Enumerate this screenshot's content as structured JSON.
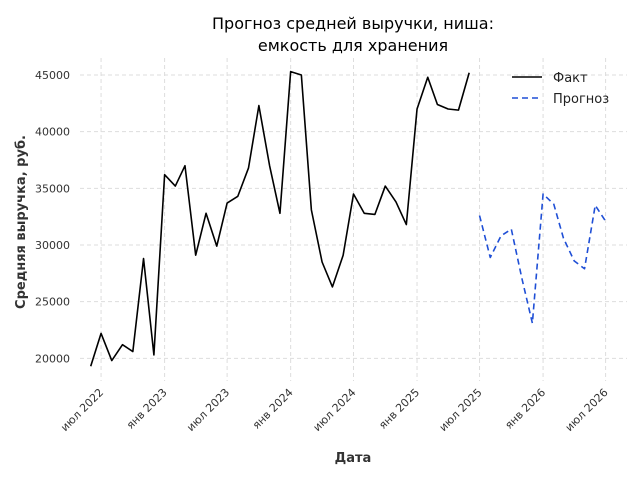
{
  "chart_data": {
    "type": "line",
    "title_lines": [
      "Прогноз средней выручки, ниша:",
      "емкость для хранения"
    ],
    "xlabel": "Дата",
    "ylabel": "Средняя выручка, руб.",
    "ylim": [
      18000,
      46500
    ],
    "xlim": [
      "2022-05-01",
      "2026-09-01"
    ],
    "yticks": [
      20000,
      25000,
      30000,
      35000,
      40000,
      45000
    ],
    "xticks": [
      {
        "date": "2022-07-01",
        "label": "июл 2022"
      },
      {
        "date": "2023-01-01",
        "label": "янв 2023"
      },
      {
        "date": "2023-07-01",
        "label": "июл 2023"
      },
      {
        "date": "2024-01-01",
        "label": "янв 2024"
      },
      {
        "date": "2024-07-01",
        "label": "июл 2024"
      },
      {
        "date": "2025-01-01",
        "label": "янв 2025"
      },
      {
        "date": "2025-07-01",
        "label": "июл 2025"
      },
      {
        "date": "2026-01-01",
        "label": "янв 2026"
      },
      {
        "date": "2026-07-01",
        "label": "июл 2026"
      }
    ],
    "grid": true,
    "legend_position": "top-right",
    "series": [
      {
        "name": "Факт",
        "color": "#000000",
        "style": "solid",
        "points": [
          [
            "2022-06-01",
            19300
          ],
          [
            "2022-07-01",
            22200
          ],
          [
            "2022-08-01",
            19800
          ],
          [
            "2022-09-01",
            21200
          ],
          [
            "2022-10-01",
            20600
          ],
          [
            "2022-11-01",
            28800
          ],
          [
            "2022-12-01",
            20300
          ],
          [
            "2023-01-01",
            36200
          ],
          [
            "2023-02-01",
            35200
          ],
          [
            "2023-03-01",
            37000
          ],
          [
            "2023-04-01",
            29100
          ],
          [
            "2023-05-01",
            32800
          ],
          [
            "2023-06-01",
            29900
          ],
          [
            "2023-07-01",
            33700
          ],
          [
            "2023-08-01",
            34300
          ],
          [
            "2023-09-01",
            36800
          ],
          [
            "2023-10-01",
            42300
          ],
          [
            "2023-11-01",
            37000
          ],
          [
            "2023-12-01",
            32800
          ],
          [
            "2024-01-01",
            45300
          ],
          [
            "2024-02-01",
            45000
          ],
          [
            "2024-03-01",
            33100
          ],
          [
            "2024-04-01",
            28500
          ],
          [
            "2024-05-01",
            26300
          ],
          [
            "2024-06-01",
            29100
          ],
          [
            "2024-07-01",
            34500
          ],
          [
            "2024-08-01",
            32800
          ],
          [
            "2024-09-01",
            32700
          ],
          [
            "2024-10-01",
            35200
          ],
          [
            "2024-11-01",
            33800
          ],
          [
            "2024-12-01",
            31800
          ],
          [
            "2025-01-01",
            42000
          ],
          [
            "2025-02-01",
            44800
          ],
          [
            "2025-03-01",
            42400
          ],
          [
            "2025-04-01",
            42000
          ],
          [
            "2025-05-01",
            41900
          ],
          [
            "2025-06-01",
            45200
          ]
        ]
      },
      {
        "name": "Прогноз",
        "color": "#1f4fd6",
        "style": "dashed",
        "points": [
          [
            "2025-07-01",
            32600
          ],
          [
            "2025-08-01",
            28900
          ],
          [
            "2025-09-01",
            30800
          ],
          [
            "2025-10-01",
            31400
          ],
          [
            "2025-11-01",
            27000
          ],
          [
            "2025-12-01",
            23100
          ],
          [
            "2026-01-01",
            34500
          ],
          [
            "2026-02-01",
            33600
          ],
          [
            "2026-03-01",
            30600
          ],
          [
            "2026-04-01",
            28600
          ],
          [
            "2026-05-01",
            27900
          ],
          [
            "2026-06-01",
            33500
          ],
          [
            "2026-07-01",
            32100
          ]
        ]
      }
    ]
  }
}
